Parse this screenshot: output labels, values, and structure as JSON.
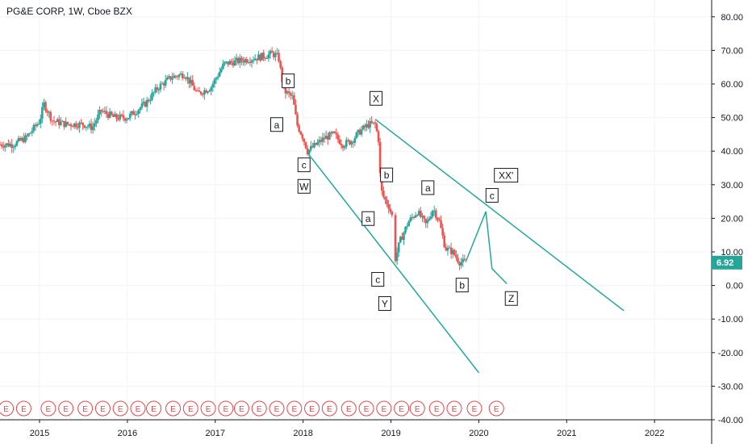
{
  "title": "PG&E CORP, 1W, Cboe BZX",
  "chart_data": {
    "type": "candlestick",
    "title": "PG&E CORP, 1W, Cboe BZX",
    "ylim": [
      -40,
      85
    ],
    "xlim": [
      2014.55,
      2022.65
    ],
    "y_ticks": [
      "80.00",
      "70.00",
      "60.00",
      "50.00",
      "40.00",
      "30.00",
      "20.00",
      "10.00",
      "0.00",
      "-10.00",
      "-20.00",
      "-30.00",
      "-40.00"
    ],
    "x_ticks": [
      "2015",
      "2016",
      "2017",
      "2018",
      "2019",
      "2020",
      "2021",
      "2022"
    ],
    "last_price": "6.92",
    "colors": {
      "up": "#26a69a",
      "down": "#ef5350",
      "line": "#26a69a"
    },
    "price_path": [
      [
        2014.55,
        42
      ],
      [
        2014.7,
        42
      ],
      [
        2014.85,
        44
      ],
      [
        2015.0,
        49
      ],
      [
        2015.05,
        54
      ],
      [
        2015.15,
        49
      ],
      [
        2015.3,
        48
      ],
      [
        2015.5,
        48
      ],
      [
        2015.6,
        47
      ],
      [
        2015.7,
        52
      ],
      [
        2015.85,
        50
      ],
      [
        2016.0,
        50
      ],
      [
        2016.2,
        54
      ],
      [
        2016.35,
        59
      ],
      [
        2016.5,
        62
      ],
      [
        2016.65,
        63
      ],
      [
        2016.8,
        57
      ],
      [
        2016.95,
        59
      ],
      [
        2017.1,
        66
      ],
      [
        2017.3,
        67
      ],
      [
        2017.5,
        68
      ],
      [
        2017.65,
        69
      ],
      [
        2017.72,
        68
      ],
      [
        2017.78,
        58
      ],
      [
        2017.88,
        56
      ],
      [
        2017.93,
        48
      ],
      [
        2018.0,
        44
      ],
      [
        2018.05,
        40
      ],
      [
        2018.1,
        41
      ],
      [
        2018.25,
        44
      ],
      [
        2018.35,
        45
      ],
      [
        2018.45,
        42
      ],
      [
        2018.55,
        43
      ],
      [
        2018.65,
        46
      ],
      [
        2018.75,
        48
      ],
      [
        2018.82,
        48
      ],
      [
        2018.87,
        42
      ],
      [
        2018.88,
        29
      ],
      [
        2018.92,
        26
      ],
      [
        2018.97,
        24
      ],
      [
        2019.02,
        20
      ],
      [
        2019.05,
        8
      ],
      [
        2019.1,
        13
      ],
      [
        2019.2,
        19
      ],
      [
        2019.3,
        22
      ],
      [
        2019.4,
        18
      ],
      [
        2019.48,
        23
      ],
      [
        2019.55,
        19
      ],
      [
        2019.62,
        11
      ],
      [
        2019.7,
        10
      ],
      [
        2019.78,
        7
      ],
      [
        2019.85,
        6.92
      ]
    ],
    "projection": [
      [
        2019.85,
        7
      ],
      [
        2020.08,
        22
      ],
      [
        2020.15,
        5
      ],
      [
        2020.32,
        0.5
      ]
    ],
    "trendlines": [
      {
        "from": [
          2018.82,
          49.5
        ],
        "to": [
          2021.65,
          -7.5
        ]
      },
      {
        "from": [
          2018.05,
          39.5
        ],
        "to": [
          2020.0,
          -26
        ]
      }
    ],
    "wave_labels": [
      {
        "text": "b",
        "x": 2017.83,
        "y": 60.8
      },
      {
        "text": "a",
        "x": 2017.7,
        "y": 47.8
      },
      {
        "text": "X",
        "x": 2018.83,
        "y": 55.6
      },
      {
        "text": "c",
        "x": 2018.01,
        "y": 35.8
      },
      {
        "text": "W",
        "x": 2018.01,
        "y": 29.4
      },
      {
        "text": "b",
        "x": 2018.95,
        "y": 32.8
      },
      {
        "text": "a",
        "x": 2018.74,
        "y": 19.8
      },
      {
        "text": "a",
        "x": 2019.42,
        "y": 29
      },
      {
        "text": "c",
        "x": 2018.85,
        "y": 1.7
      },
      {
        "text": "Y",
        "x": 2018.93,
        "y": -5.5
      },
      {
        "text": "b",
        "x": 2019.81,
        "y": 0
      },
      {
        "text": "XX'",
        "x": 2020.31,
        "y": 32.7
      },
      {
        "text": "c",
        "x": 2020.15,
        "y": 26.7
      },
      {
        "text": "Z",
        "x": 2020.37,
        "y": -4
      }
    ],
    "earnings_markers": [
      2014.62,
      2014.82,
      2015.1,
      2015.3,
      2015.52,
      2015.72,
      2015.92,
      2016.12,
      2016.3,
      2016.52,
      2016.72,
      2016.92,
      2017.12,
      2017.3,
      2017.5,
      2017.7,
      2017.9,
      2018.1,
      2018.3,
      2018.52,
      2018.72,
      2018.92,
      2019.12,
      2019.3,
      2019.52,
      2019.72,
      2019.95,
      2020.2
    ]
  }
}
